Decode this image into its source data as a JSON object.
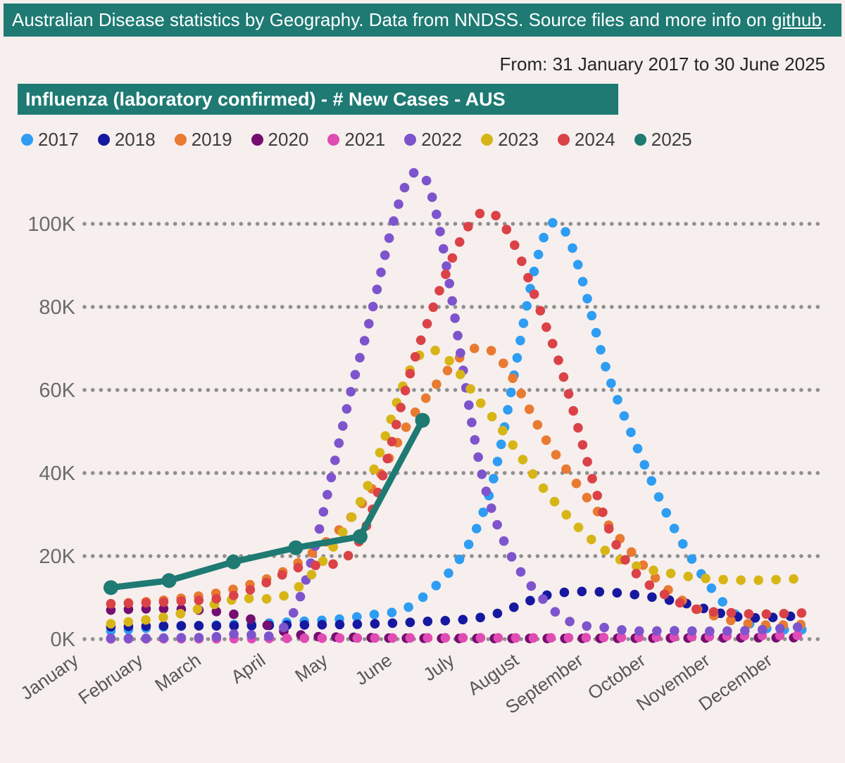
{
  "banner": {
    "text_prefix": "Australian Disease statistics by Geography. Data from NNDSS. Source files and more info on ",
    "link_text": "github",
    "text_suffix": "."
  },
  "date_range": "From: 31 January 2017 to 30 June 2025",
  "chart_title": "Influenza (laboratory confirmed) - # New Cases - AUS",
  "colors": {
    "banner_bg": "#1e7a73",
    "title_bg": "#1e7a73",
    "page_bg": "#f6efed",
    "grid_dot": "#8f8f8f",
    "y_label": "#6b6b6b",
    "x_label": "#565656"
  },
  "chart_data": {
    "type": "line",
    "subtype": "dotted-line scatter of monthly totals, one dotted curve per year; 2025 drawn as solid line with round markers",
    "title": "Influenza (laboratory confirmed) - # New Cases - AUS",
    "xlabel": "",
    "ylabel": "",
    "x_axis": {
      "labels": [
        "January",
        "February",
        "March",
        "April",
        "May",
        "June",
        "July",
        "August",
        "September",
        "October",
        "November",
        "December"
      ],
      "type": "time (day of year), points plotted at month end"
    },
    "y_axis": {
      "ticks": [
        {
          "label": "0K",
          "value": 0
        },
        {
          "label": "20K",
          "value": 20
        },
        {
          "label": "40K",
          "value": 40
        },
        {
          "label": "60K",
          "value": 60
        },
        {
          "label": "80K",
          "value": 80
        },
        {
          "label": "100K",
          "value": 100
        }
      ],
      "unit": "thousand new cases",
      "range": [
        0,
        116
      ],
      "grid": "dotted horizontal lines"
    },
    "legend_position": "top-left above plot",
    "series": [
      {
        "name": "2017",
        "color": "#2e9df3",
        "render": "dotted",
        "values_K": [
          2.0,
          3.0,
          3.5,
          4.2,
          5.5,
          10,
          33,
          100,
          60,
          25,
          5,
          2.2
        ]
      },
      {
        "name": "2018",
        "color": "#1718a0",
        "render": "dotted",
        "values_K": [
          3.0,
          3.2,
          3.2,
          3.4,
          3.6,
          4.2,
          5.5,
          10.8,
          11.2,
          9.0,
          5.3,
          5.7
        ]
      },
      {
        "name": "2019",
        "color": "#e97a31",
        "render": "dotted",
        "values_K": [
          8.5,
          9.5,
          12,
          18,
          32,
          57,
          70,
          46,
          26,
          10,
          4.0,
          3.5
        ]
      },
      {
        "name": "2020",
        "color": "#740e70",
        "render": "dotted",
        "values_K": [
          7.0,
          7.3,
          6.0,
          1.2,
          0.4,
          0.2,
          0.15,
          0.15,
          0.2,
          0.25,
          0.3,
          0.35
        ]
      },
      {
        "name": "2021",
        "color": "#e14cb4",
        "render": "dotted",
        "values_K": [
          0.05,
          0.08,
          0.1,
          0.2,
          0.25,
          0.3,
          0.3,
          0.3,
          0.4,
          0.5,
          0.8,
          0.9
        ]
      },
      {
        "name": "2022",
        "color": "#7e54cd",
        "render": "dotted",
        "values_K": [
          0.2,
          0.3,
          1.2,
          7.5,
          68,
          112,
          35,
          7.5,
          2.5,
          2.0,
          2.0,
          3.0
        ]
      },
      {
        "name": "2023",
        "color": "#d7b517",
        "render": "dotted",
        "values_K": [
          3.7,
          5.5,
          9.5,
          12,
          33,
          69,
          55,
          34,
          20,
          15.5,
          14.2,
          14.6
        ]
      },
      {
        "name": "2024",
        "color": "#da4248",
        "render": "dotted",
        "values_K": [
          8.5,
          9.0,
          10.5,
          17,
          24,
          73,
          103,
          72,
          24,
          9.0,
          6.2,
          6.3
        ]
      },
      {
        "name": "2025",
        "color": "#1e7a73",
        "render": "solid-markers",
        "values_K": [
          12.4,
          14.1,
          18.6,
          22.0,
          24.7,
          52.7
        ]
      }
    ]
  }
}
